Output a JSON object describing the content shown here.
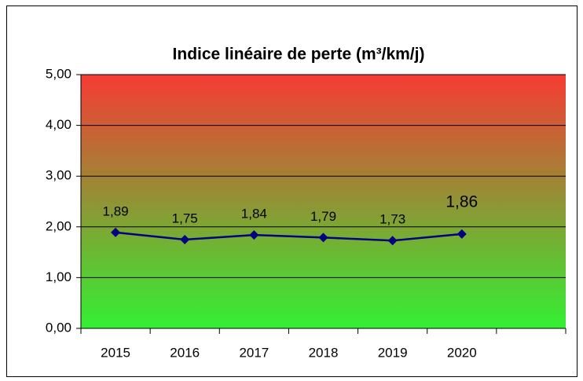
{
  "chart_data": {
    "type": "line",
    "title": "Indice linéaire de perte (m³/km/j)",
    "categories": [
      "2015",
      "2016",
      "2017",
      "2018",
      "2019",
      "2020",
      null
    ],
    "series": [
      {
        "color": "#000080",
        "values": [
          1.89,
          1.75,
          1.84,
          1.79,
          1.73,
          1.86,
          null
        ],
        "value_labels": [
          "1,89",
          "1,75",
          "1,84",
          "1,79",
          "1,73",
          "1,86",
          null
        ]
      }
    ],
    "ylim": [
      0,
      5
    ],
    "yticks": [
      {
        "value": 0,
        "label": "0,00"
      },
      {
        "value": 1,
        "label": "1,00"
      },
      {
        "value": 2,
        "label": "2,00"
      },
      {
        "value": 3,
        "label": "3,00"
      },
      {
        "value": 4,
        "label": "4,00"
      },
      {
        "value": 5,
        "label": "5,00"
      }
    ],
    "grid": true
  }
}
